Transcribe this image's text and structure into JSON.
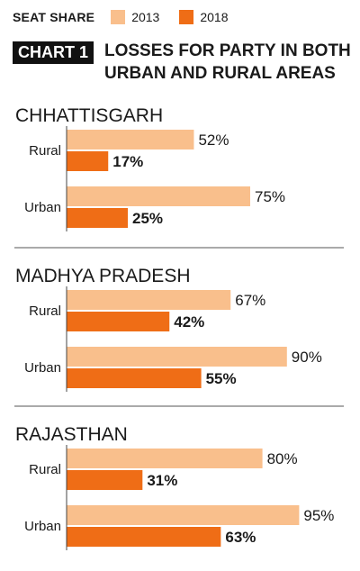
{
  "legend": {
    "title": "SEAT SHARE",
    "items": [
      {
        "label": "2013",
        "color": "#f9bf8c"
      },
      {
        "label": "2018",
        "color": "#ef6d16"
      }
    ]
  },
  "header": {
    "badge": "CHART 1",
    "title_line1": "LOSSES FOR PARTY IN BOTH",
    "title_line2": "URBAN AND RURAL AREAS"
  },
  "chart_data": {
    "type": "bar",
    "orientation": "horizontal",
    "series_names": [
      "2013",
      "2018"
    ],
    "colors": {
      "2013": "#f9bf8c",
      "2018": "#ef6d16"
    },
    "xlim": [
      0,
      100
    ],
    "unit": "%",
    "grid": false,
    "legend_position": "top-left",
    "groups": [
      {
        "state": "CHHATTISGARH",
        "categories": [
          {
            "name": "Rural",
            "v2013": 52,
            "v2018": 17,
            "label2013": "52%",
            "label2018": "17%"
          },
          {
            "name": "Urban",
            "v2013": 75,
            "v2018": 25,
            "label2013": "75%",
            "label2018": "25%"
          }
        ]
      },
      {
        "state": "MADHYA PRADESH",
        "categories": [
          {
            "name": "Rural",
            "v2013": 67,
            "v2018": 42,
            "label2013": "67%",
            "label2018": "42%"
          },
          {
            "name": "Urban",
            "v2013": 90,
            "v2018": 55,
            "label2013": "90%",
            "label2018": "55%"
          }
        ]
      },
      {
        "state": "RAJASTHAN",
        "categories": [
          {
            "name": "Rural",
            "v2013": 80,
            "v2018": 31,
            "label2013": "80%",
            "label2018": "31%"
          },
          {
            "name": "Urban",
            "v2013": 95,
            "v2018": 63,
            "label2013": "95%",
            "label2018": "63%"
          }
        ]
      }
    ]
  }
}
